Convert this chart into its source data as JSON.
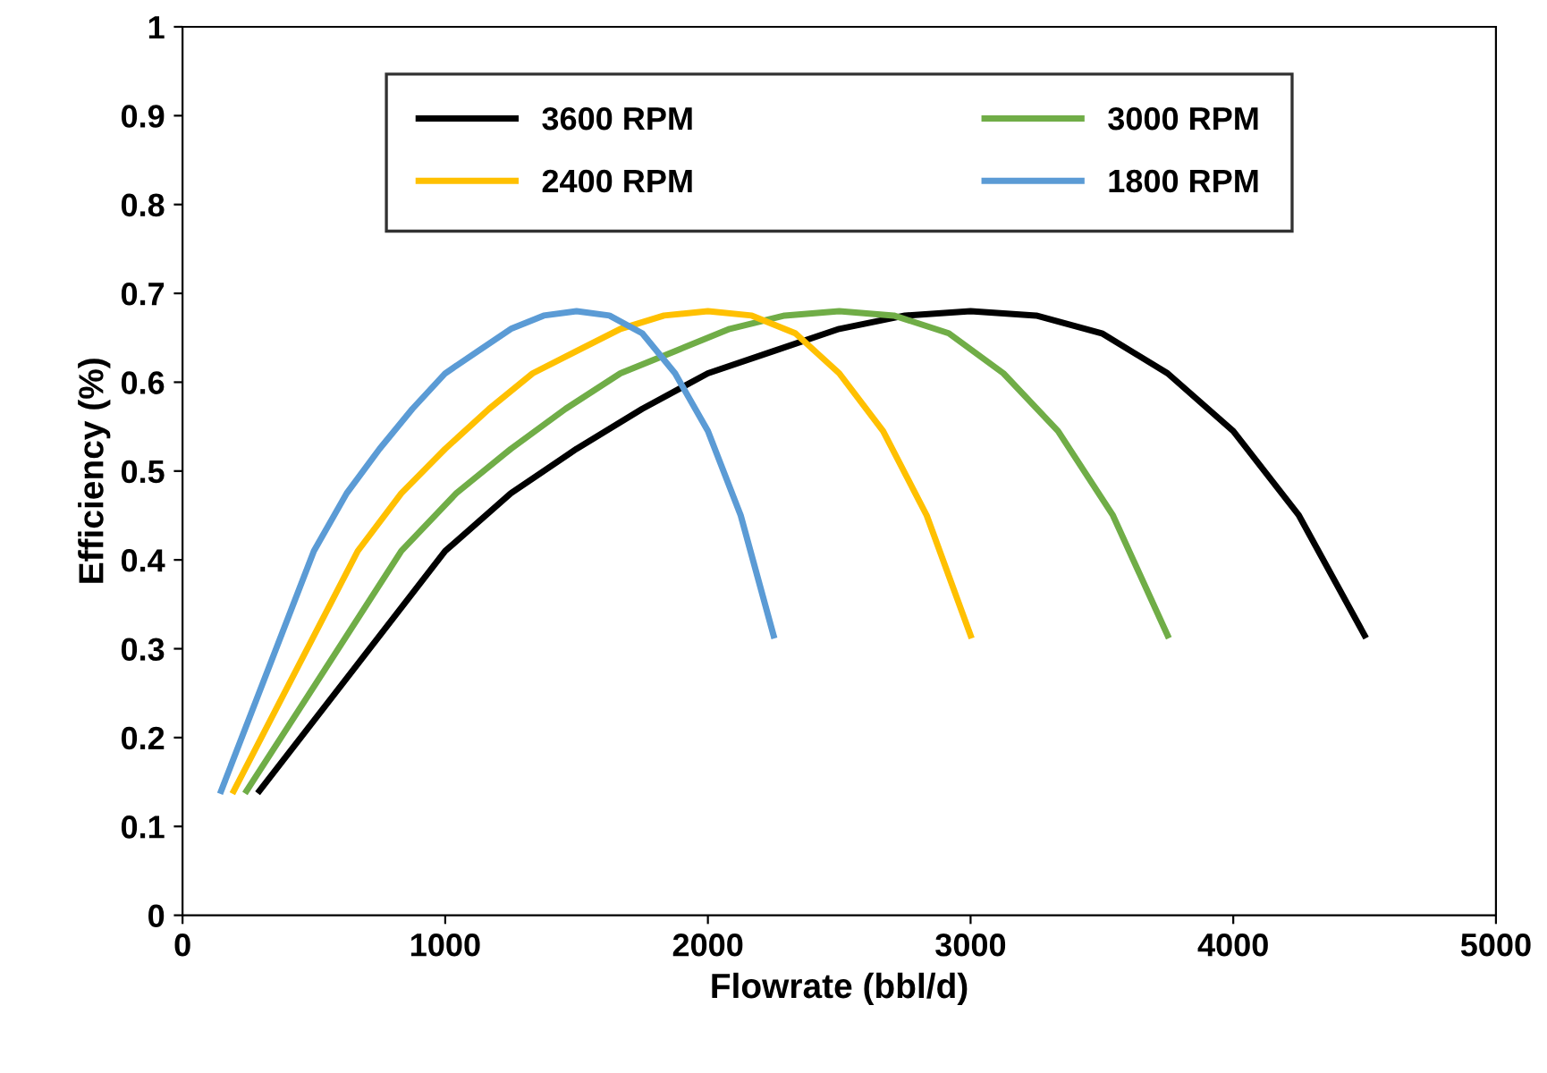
{
  "chart_data": {
    "type": "line",
    "xlabel": "Flowrate (bbl/d)",
    "ylabel": "Efficiency (%)",
    "xlim": [
      0,
      5000
    ],
    "xticks": [
      0,
      1000,
      2000,
      3000,
      4000,
      5000
    ],
    "ylim": [
      0,
      1
    ],
    "yticks": [
      0,
      0.1,
      0.2,
      0.3,
      0.4,
      0.5,
      0.6,
      0.7,
      0.8,
      0.9,
      1
    ],
    "grid": false,
    "legend": "top",
    "marker": "none",
    "line_style": "solid",
    "series": [
      {
        "name": "3600 RPM",
        "color": "#000000",
        "x": [
          293,
          1000,
          1250,
          1500,
          1750,
          2000,
          2250,
          2500,
          2750,
          3000,
          3250,
          3500,
          3750,
          4000,
          4250,
          4500
        ],
        "values": [
          0.14,
          0.41,
          0.475,
          0.525,
          0.57,
          0.61,
          0.635,
          0.66,
          0.675,
          0.68,
          0.675,
          0.655,
          0.61,
          0.545,
          0.45,
          0.315
        ]
      },
      {
        "name": "3000 RPM",
        "color": "#70ad47",
        "x": [
          244,
          833,
          1042,
          1250,
          1458,
          1667,
          1875,
          2083,
          2292,
          2500,
          2708,
          2917,
          3125,
          3333,
          3542,
          3750
        ],
        "values": [
          0.14,
          0.41,
          0.475,
          0.525,
          0.57,
          0.61,
          0.635,
          0.66,
          0.675,
          0.68,
          0.675,
          0.655,
          0.61,
          0.545,
          0.45,
          0.315
        ]
      },
      {
        "name": "2400 RPM",
        "color": "#ffc000",
        "x": [
          195,
          667,
          833,
          1000,
          1167,
          1333,
          1500,
          1667,
          1833,
          2000,
          2167,
          2333,
          2500,
          2667,
          2833,
          3000
        ],
        "values": [
          0.14,
          0.41,
          0.475,
          0.525,
          0.57,
          0.61,
          0.635,
          0.66,
          0.675,
          0.68,
          0.675,
          0.655,
          0.61,
          0.545,
          0.45,
          0.315
        ]
      },
      {
        "name": "1800 RPM",
        "color": "#5b9bd5",
        "x": [
          147,
          500,
          625,
          750,
          875,
          1000,
          1125,
          1250,
          1375,
          1500,
          1625,
          1750,
          1875,
          2000,
          2125,
          2250
        ],
        "values": [
          0.14,
          0.41,
          0.475,
          0.525,
          0.57,
          0.61,
          0.635,
          0.66,
          0.675,
          0.68,
          0.675,
          0.655,
          0.61,
          0.545,
          0.45,
          0.315
        ]
      }
    ]
  }
}
